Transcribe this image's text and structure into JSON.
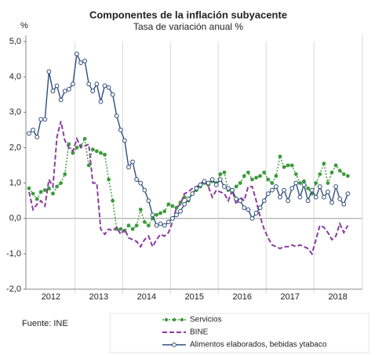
{
  "chart_data": {
    "type": "line",
    "title": "Componentes de la inflación subyacente",
    "subtitle": "Tasa de variación anual %",
    "y_unit": "%",
    "source": "Fuente: INE",
    "categories": [
      null,
      null,
      null,
      null,
      null,
      null,
      "2012",
      null,
      null,
      null,
      null,
      null,
      null,
      null,
      null,
      null,
      null,
      null,
      "2013",
      null,
      null,
      null,
      null,
      null,
      null,
      null,
      null,
      null,
      null,
      null,
      "2014",
      null,
      null,
      null,
      null,
      null,
      null,
      null,
      null,
      null,
      null,
      null,
      "2015",
      null,
      null,
      null,
      null,
      null,
      null,
      null,
      null,
      null,
      null,
      null,
      "2016",
      null,
      null,
      null,
      null,
      null,
      null,
      null,
      null,
      null,
      null,
      null,
      "2017",
      null,
      null,
      null,
      null,
      null,
      null,
      null,
      null,
      null,
      null,
      null,
      "2018",
      null,
      null
    ],
    "ylim": [
      -2,
      5
    ],
    "yticks": [
      {
        "value": -2,
        "label": "-2,0"
      },
      {
        "value": -1,
        "label": "-1,0"
      },
      {
        "value": 0,
        "label": "0,0"
      },
      {
        "value": 1,
        "label": "1,0"
      },
      {
        "value": 2,
        "label": "2,0"
      },
      {
        "value": 3,
        "label": "3,0"
      },
      {
        "value": 4,
        "label": "4,0"
      },
      {
        "value": 5,
        "label": "5,0"
      }
    ],
    "series": [
      {
        "name": "Servicios",
        "color": "#3c9a3c",
        "style": "dotted",
        "marker": "dot",
        "values": [
          0.85,
          0.7,
          0.55,
          0.75,
          0.8,
          0.85,
          0.7,
          0.9,
          1.0,
          1.25,
          2.1,
          1.85,
          2.0,
          2.05,
          2.25,
          1.5,
          1.95,
          1.9,
          1.85,
          1.8,
          1.1,
          0.5,
          -0.3,
          -0.3,
          -0.35,
          -0.2,
          -0.3,
          -0.2,
          0.25,
          -0.1,
          -0.2,
          0.0,
          0.1,
          0.15,
          0.2,
          0.4,
          0.35,
          0.3,
          0.45,
          0.6,
          0.5,
          0.7,
          0.8,
          0.9,
          1.0,
          0.95,
          1.05,
          1.0,
          1.25,
          1.3,
          0.8,
          0.75,
          0.9,
          1.0,
          1.2,
          1.3,
          1.1,
          1.15,
          1.2,
          1.3,
          1.1,
          1.0,
          1.2,
          1.75,
          1.45,
          1.5,
          1.5,
          1.25,
          1.0,
          1.05,
          0.85,
          0.7,
          1.0,
          1.25,
          1.55,
          1.0,
          1.3,
          1.5,
          1.35,
          1.25,
          1.2
        ]
      },
      {
        "name": "BINE",
        "color": "#8a3c9e",
        "style": "dashed",
        "marker": "none",
        "values": [
          0.75,
          0.25,
          0.4,
          0.5,
          0.35,
          1.1,
          0.9,
          2.3,
          2.75,
          2.2,
          2.0,
          1.9,
          2.25,
          2.0,
          2.05,
          2.1,
          1.0,
          1.0,
          -0.3,
          -0.45,
          -0.3,
          -0.35,
          -0.25,
          -0.45,
          -0.3,
          -0.55,
          -0.6,
          -0.65,
          -0.8,
          -0.6,
          -0.5,
          -0.8,
          -0.6,
          -0.45,
          -0.5,
          -0.4,
          -0.1,
          0.3,
          0.4,
          0.7,
          0.75,
          0.85,
          0.9,
          0.95,
          1.1,
          0.9,
          0.6,
          0.8,
          0.75,
          0.7,
          0.5,
          0.8,
          0.4,
          0.6,
          0.5,
          0.9,
          0.9,
          0.5,
          0.05,
          -0.3,
          -0.55,
          -0.75,
          -0.8,
          -0.85,
          -0.8,
          -0.8,
          -0.75,
          -0.8,
          -0.75,
          -0.8,
          -0.85,
          -1.0,
          -0.6,
          -0.2,
          -0.25,
          -0.4,
          -0.6,
          -0.5,
          -0.15,
          -0.4,
          -0.2
        ]
      },
      {
        "name": "Alimentos elaborados, bebidas ytabaco",
        "color": "#2f4e7a",
        "style": "solid",
        "marker": "circle",
        "values": [
          2.4,
          2.5,
          2.3,
          2.8,
          2.8,
          4.15,
          3.6,
          3.75,
          3.35,
          3.6,
          3.65,
          3.8,
          4.65,
          4.4,
          4.45,
          3.8,
          3.6,
          3.8,
          3.3,
          3.75,
          3.7,
          3.5,
          2.9,
          2.5,
          2.2,
          1.45,
          1.6,
          1.1,
          1.0,
          0.8,
          0.5,
          0.1,
          -0.2,
          -0.15,
          -0.2,
          -0.1,
          0.0,
          0.1,
          0.2,
          0.4,
          0.55,
          0.7,
          0.85,
          0.95,
          1.05,
          1.0,
          1.1,
          0.95,
          1.1,
          0.9,
          0.85,
          0.8,
          0.55,
          0.5,
          0.3,
          0.25,
          0.0,
          0.15,
          0.3,
          0.5,
          0.7,
          0.8,
          0.9,
          0.6,
          0.8,
          0.5,
          0.85,
          1.0,
          0.6,
          0.95,
          0.5,
          0.8,
          0.6,
          0.9,
          0.6,
          0.75,
          0.45,
          0.9,
          0.55,
          0.4,
          0.7
        ]
      }
    ]
  }
}
